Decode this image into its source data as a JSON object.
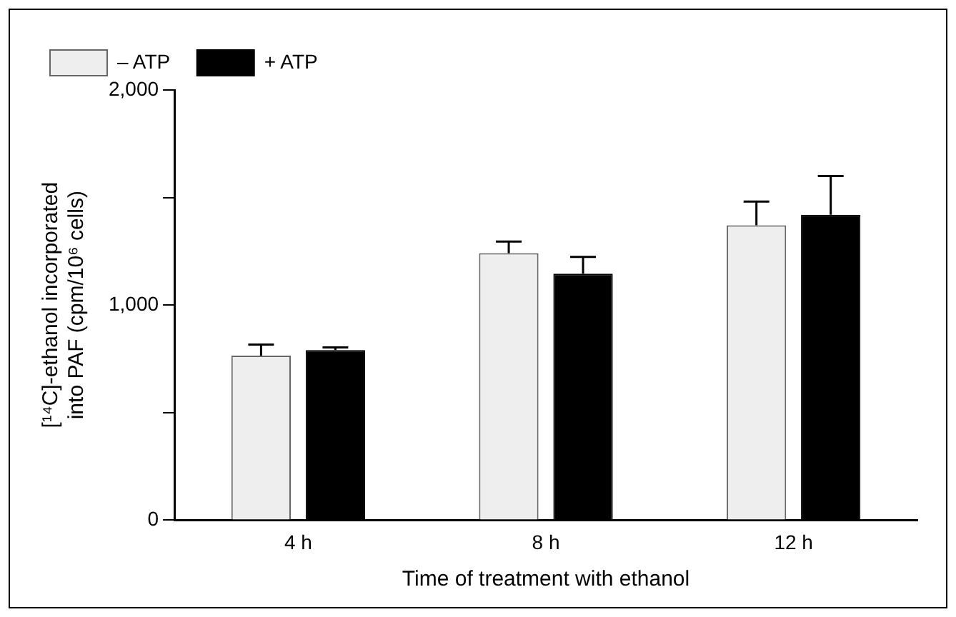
{
  "chart_data": {
    "type": "bar",
    "xlabel": "Time of treatment with ethanol",
    "ylabel": "[¹⁴C]-ethanol incorporated\ninto PAF (cpm/10⁶ cells)",
    "categories": [
      "4 h",
      "8 h",
      "12 h"
    ],
    "series": [
      {
        "name": "– ATP",
        "color": "#eeeeee",
        "values": [
          765,
          1241,
          1371
        ],
        "errors": [
          [
            765,
            816
          ],
          [
            1241,
            1295
          ],
          [
            1371,
            1481
          ]
        ]
      },
      {
        "name": "+ ATP",
        "color": "#000000",
        "values": [
          791,
          1146,
          1420
        ],
        "errors": [
          [
            791,
            803
          ],
          [
            1146,
            1224
          ],
          [
            1420,
            1600
          ]
        ]
      }
    ],
    "ylim": [
      0,
      2000
    ],
    "yticks": [
      {
        "value": 0,
        "label": "0"
      },
      {
        "value": 500,
        "label": null
      },
      {
        "value": 1000,
        "label": "1,000"
      },
      {
        "value": 1500,
        "label": null
      },
      {
        "value": 2000,
        "label": "2,000"
      }
    ],
    "grid": false,
    "legend": "top left"
  }
}
